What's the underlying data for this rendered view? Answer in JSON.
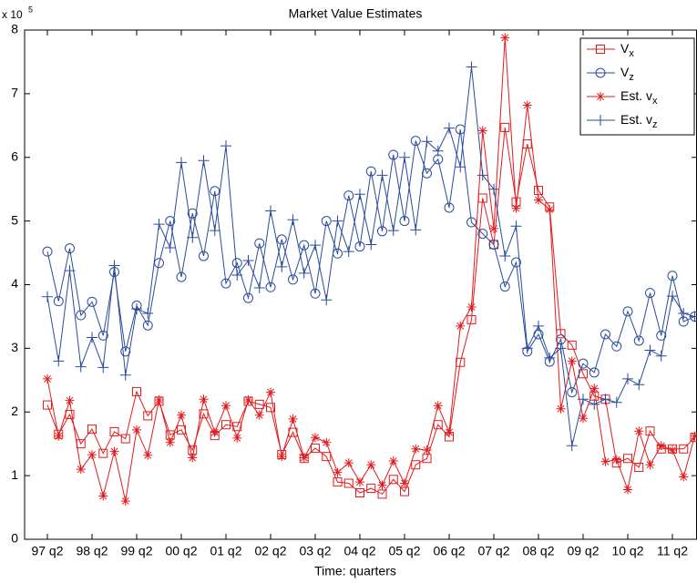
{
  "chart_data": {
    "type": "line",
    "title": "Market Value Estimates",
    "x_label": "Time: quarters",
    "y_multiplier": {
      "base": "x 10",
      "exponent": "5"
    },
    "categories": [
      "97 q2",
      null,
      null,
      null,
      "98 q2",
      null,
      null,
      null,
      "99 q2",
      null,
      null,
      null,
      "00 q2",
      null,
      null,
      null,
      "01 q2",
      null,
      null,
      null,
      "02 q2",
      null,
      null,
      null,
      "03 q2",
      null,
      null,
      null,
      "04 q2",
      null,
      null,
      null,
      "05 q2",
      null,
      null,
      null,
      "06 q2",
      null,
      null,
      null,
      "07 q2",
      null,
      null,
      null,
      "08 q2",
      null,
      null,
      null,
      "09 q2",
      null,
      null,
      null,
      "10 q2",
      null,
      null,
      null,
      "11 q2",
      null,
      null
    ],
    "ylim": [
      0,
      8
    ],
    "yticks": [
      0,
      1,
      2,
      3,
      4,
      5,
      6,
      7,
      8
    ],
    "legend": "upper right",
    "series": [
      {
        "name": "Vx",
        "color": "#e31a1c",
        "marker": "square",
        "values": [
          2.11,
          1.65,
          1.96,
          1.5,
          1.73,
          1.35,
          1.69,
          1.58,
          2.32,
          1.94,
          2.17,
          1.64,
          1.72,
          1.4,
          1.97,
          1.63,
          1.8,
          1.77,
          2.17,
          2.12,
          2.07,
          1.33,
          1.68,
          1.27,
          1.43,
          1.3,
          0.9,
          0.88,
          0.73,
          0.8,
          0.71,
          0.94,
          0.75,
          1.17,
          1.27,
          1.8,
          1.61,
          2.78,
          3.45,
          5.36,
          4.63,
          6.47,
          5.3,
          6.21,
          5.48,
          5.22,
          3.23,
          3.05,
          2.6,
          2.25,
          2.2,
          1.2,
          1.27,
          1.13,
          1.7,
          1.42,
          1.42,
          1.42,
          1.6
        ]
      },
      {
        "name": "Vz",
        "color": "#2a4b9b",
        "marker": "circle",
        "values": [
          4.52,
          3.74,
          4.57,
          3.52,
          3.73,
          3.2,
          4.2,
          2.95,
          3.67,
          3.36,
          4.34,
          5.0,
          4.12,
          5.12,
          4.45,
          5.47,
          4.02,
          4.34,
          3.79,
          4.65,
          3.96,
          4.71,
          4.08,
          4.62,
          3.86,
          5.0,
          4.49,
          5.4,
          4.6,
          5.78,
          4.84,
          6.04,
          5.0,
          6.26,
          5.75,
          5.97,
          5.21,
          6.44,
          4.98,
          4.8,
          4.63,
          3.97,
          4.35,
          2.95,
          3.22,
          2.79,
          3.14,
          2.31,
          2.76,
          2.62,
          3.22,
          3.03,
          3.58,
          3.12,
          3.87,
          3.2,
          4.14,
          3.42,
          3.5
        ]
      },
      {
        "name": "Est. vx",
        "color": "#e31a1c",
        "marker": "star",
        "values": [
          2.52,
          1.62,
          2.18,
          1.1,
          1.33,
          0.68,
          1.38,
          0.6,
          1.72,
          1.32,
          2.19,
          1.52,
          1.95,
          1.28,
          2.2,
          1.68,
          2.1,
          1.59,
          2.19,
          1.95,
          2.31,
          1.3,
          1.89,
          1.28,
          1.6,
          1.52,
          1.05,
          1.2,
          0.9,
          1.17,
          0.85,
          1.23,
          0.88,
          1.42,
          1.4,
          2.1,
          1.68,
          3.35,
          3.65,
          6.42,
          4.88,
          7.88,
          5.2,
          6.82,
          5.33,
          5.18,
          2.05,
          2.8,
          1.9,
          2.37,
          1.22,
          1.25,
          0.78,
          1.7,
          1.17,
          1.47,
          1.4,
          0.98,
          1.62
        ]
      },
      {
        "name": "Est. vz",
        "color": "#2a4b9b",
        "marker": "plus",
        "values": [
          3.81,
          2.8,
          4.22,
          2.71,
          3.17,
          2.7,
          4.3,
          2.58,
          3.62,
          3.55,
          4.95,
          4.58,
          5.92,
          4.74,
          5.95,
          4.85,
          6.18,
          4.15,
          4.38,
          3.95,
          5.16,
          4.28,
          5.02,
          4.18,
          4.62,
          3.76,
          5.0,
          4.52,
          5.42,
          4.63,
          5.72,
          4.85,
          6.0,
          4.86,
          6.25,
          6.1,
          6.46,
          5.85,
          7.42,
          5.72,
          5.5,
          4.45,
          4.92,
          3.0,
          3.35,
          2.85,
          3.0,
          1.47,
          2.2,
          2.12,
          2.2,
          2.15,
          2.52,
          2.43,
          2.97,
          2.88,
          3.82,
          3.55,
          3.5
        ]
      }
    ]
  }
}
